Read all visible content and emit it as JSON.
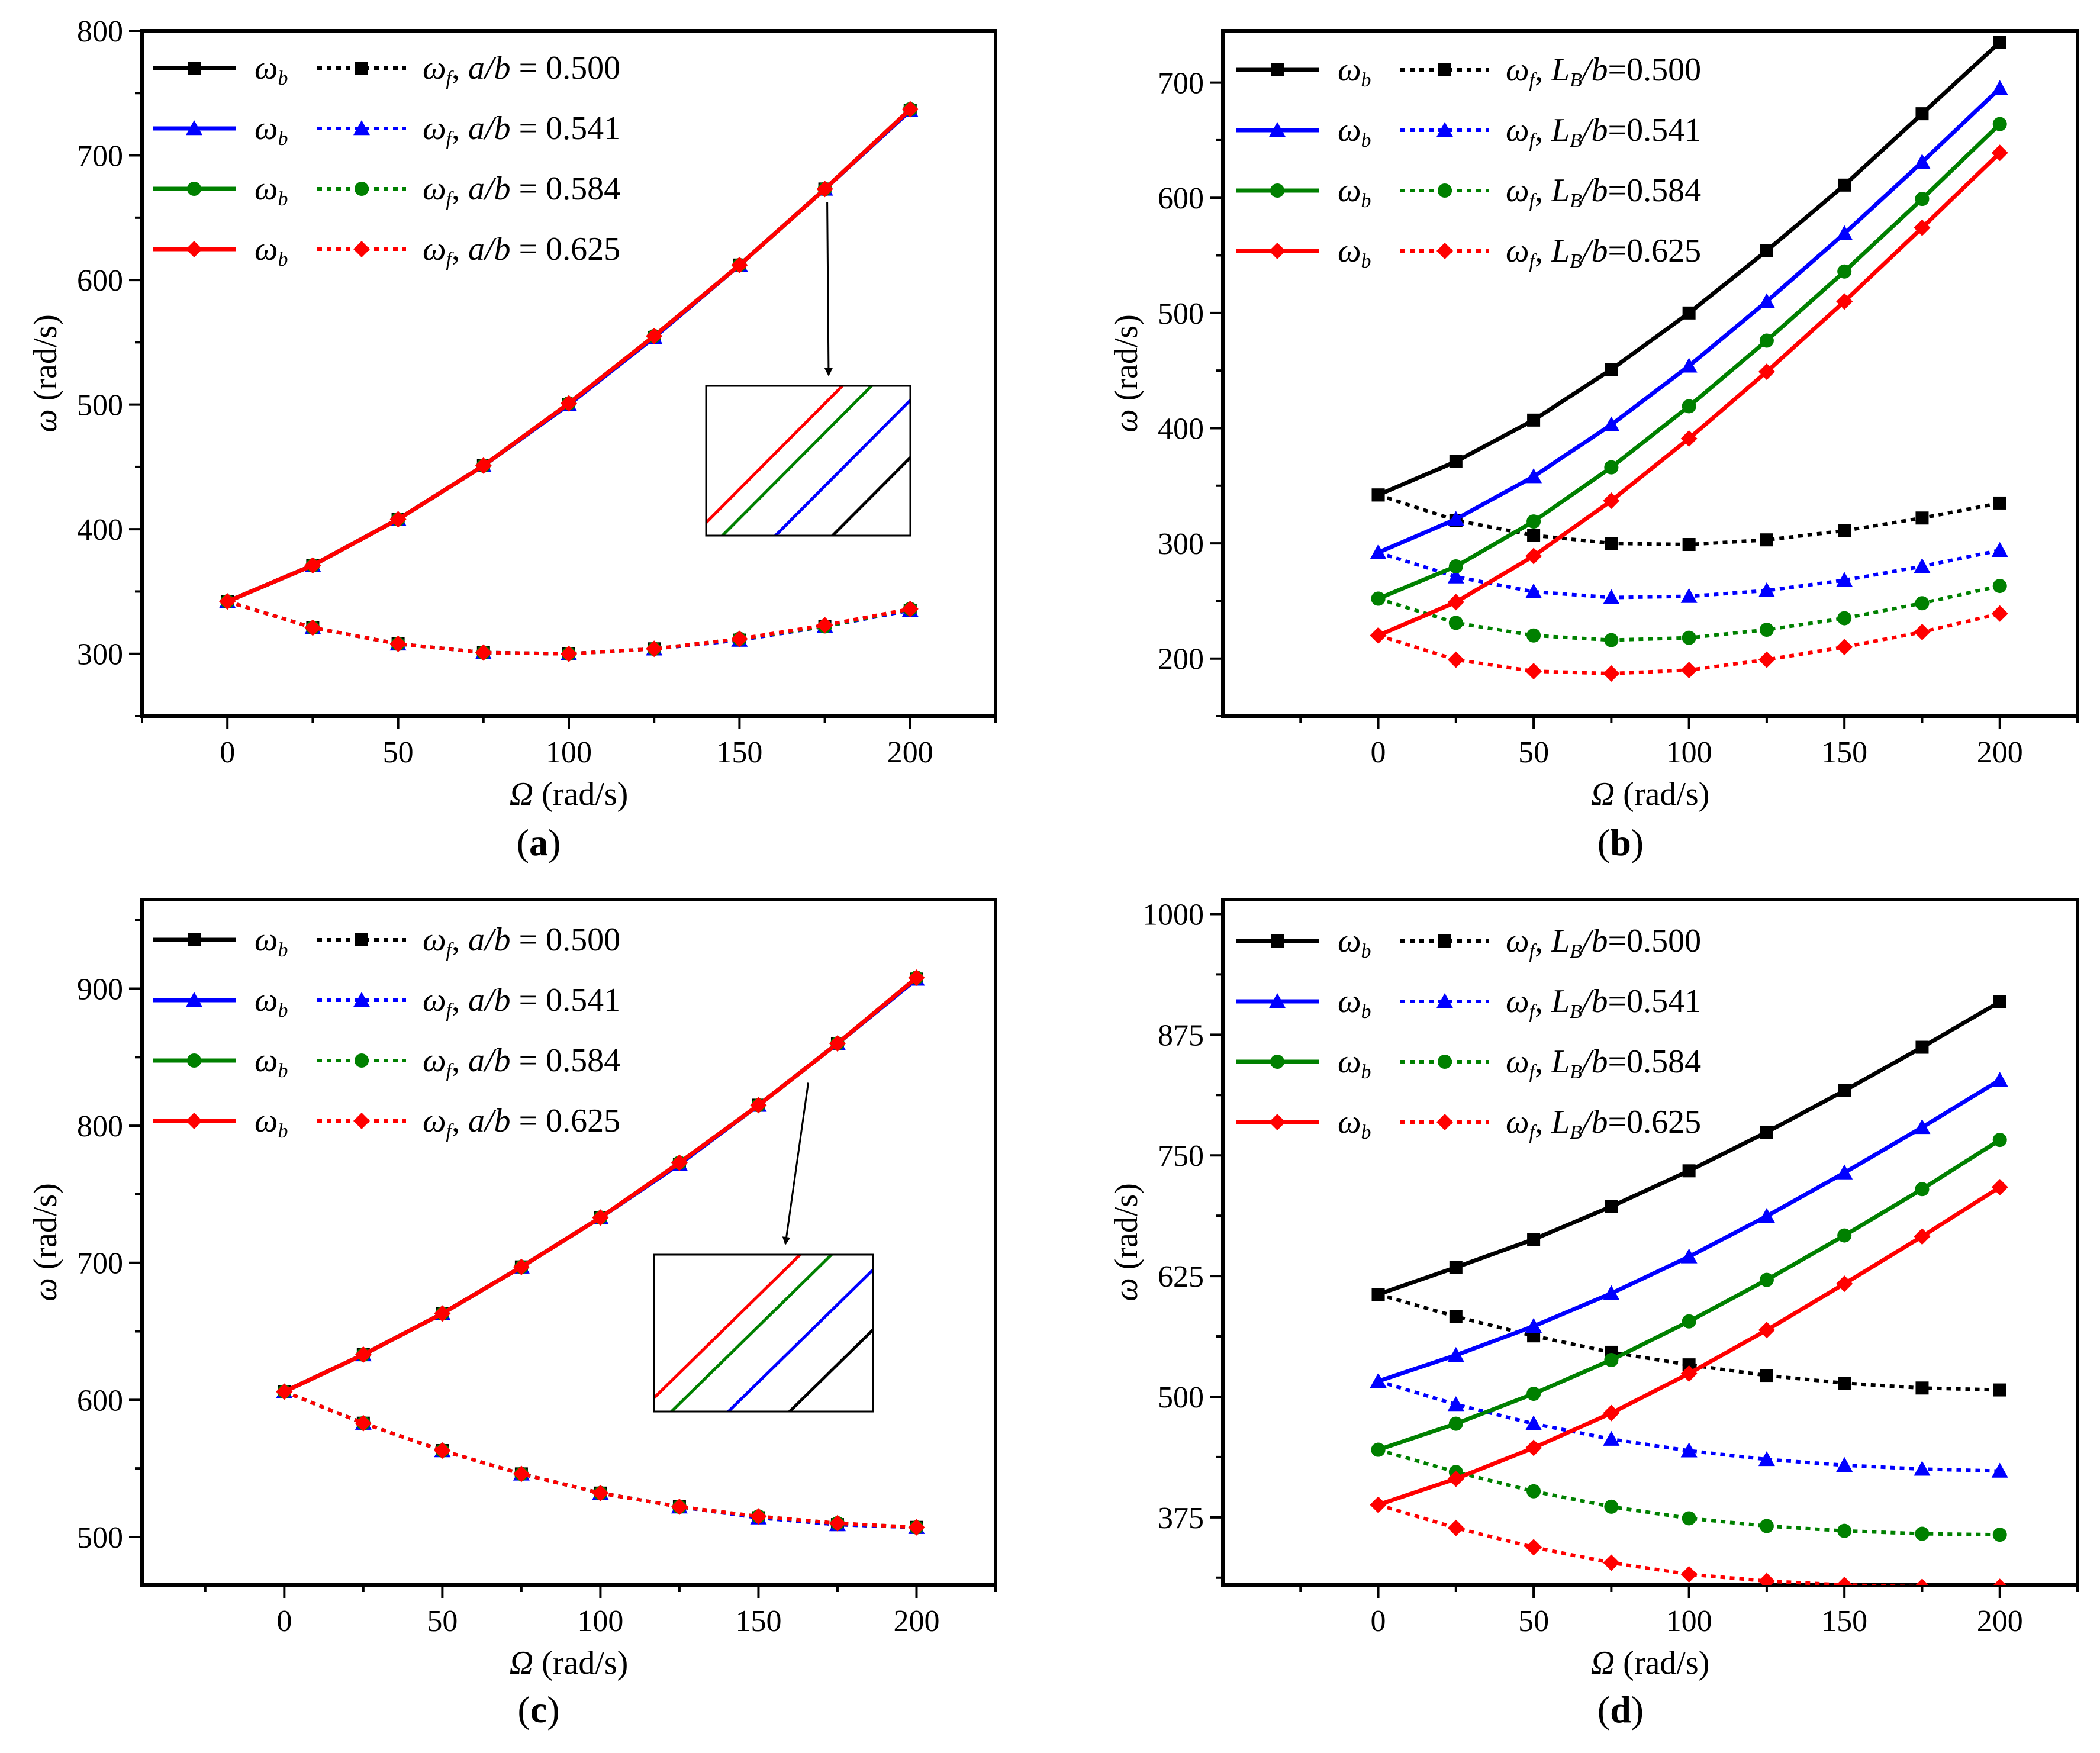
{
  "colors": {
    "black": "#000000",
    "blue": "#0000ff",
    "green": "#008000",
    "red": "#ff0000"
  },
  "chart_data": [
    {
      "type": "line",
      "panel_label": "(a)",
      "xlabel": "Ω",
      "xlabel_unit": " (rad/s)",
      "ylabel": "ω",
      "ylabel_unit": " (rad/s)",
      "xlim": [
        -25,
        225
      ],
      "ylim": [
        250,
        800
      ],
      "xticks": [
        0,
        50,
        100,
        150,
        200
      ],
      "yticks": [
        300,
        400,
        500,
        600,
        700,
        800
      ],
      "x": [
        0,
        25,
        50,
        75,
        100,
        125,
        150,
        175,
        200
      ],
      "param_label": "a/b",
      "legend": [
        {
          "b": "ω",
          "b_sub": "b",
          "f": "ω",
          "f_sub": "f",
          "param": "a/b",
          "value": " = 0.500",
          "color": "black",
          "marker": "square"
        },
        {
          "b": "ω",
          "b_sub": "b",
          "f": "ω",
          "f_sub": "f",
          "param": "a/b",
          "value": " = 0.541",
          "color": "blue",
          "marker": "triangle"
        },
        {
          "b": "ω",
          "b_sub": "b",
          "f": "ω",
          "f_sub": "f",
          "param": "a/b",
          "value": " = 0.584",
          "color": "green",
          "marker": "circle"
        },
        {
          "b": "ω",
          "b_sub": "b",
          "f": "ω",
          "f_sub": "f",
          "param": "a/b",
          "value": " = 0.625",
          "color": "red",
          "marker": "diamond"
        }
      ],
      "series": [
        {
          "name": "ω_b a/b=0.500",
          "color": "black",
          "marker": "square",
          "dash": false,
          "values": [
            342,
            371,
            408,
            451,
            500,
            554,
            612,
            673,
            736
          ]
        },
        {
          "name": "ω_f a/b=0.500",
          "color": "black",
          "marker": "square",
          "dash": true,
          "values": [
            342,
            321,
            308,
            301,
            300,
            304,
            311,
            322,
            335
          ]
        },
        {
          "name": "ω_b a/b=0.541",
          "color": "blue",
          "marker": "triangle",
          "dash": false,
          "values": [
            342,
            371,
            408,
            451,
            500,
            554,
            612,
            673,
            736
          ]
        },
        {
          "name": "ω_f a/b=0.541",
          "color": "blue",
          "marker": "triangle",
          "dash": true,
          "values": [
            342,
            321,
            308,
            301,
            300,
            304,
            311,
            322,
            335
          ]
        },
        {
          "name": "ω_b a/b=0.584",
          "color": "green",
          "marker": "circle",
          "dash": false,
          "values": [
            342,
            371,
            408,
            451,
            501,
            555,
            612,
            673,
            737
          ]
        },
        {
          "name": "ω_f a/b=0.584",
          "color": "green",
          "marker": "circle",
          "dash": true,
          "values": [
            342,
            321,
            308,
            301,
            300,
            304,
            312,
            322,
            336
          ]
        },
        {
          "name": "ω_b a/b=0.625",
          "color": "red",
          "marker": "diamond",
          "dash": false,
          "values": [
            342,
            371,
            408,
            451,
            501,
            555,
            612,
            673,
            737
          ]
        },
        {
          "name": "ω_f a/b=0.625",
          "color": "red",
          "marker": "diamond",
          "dash": true,
          "values": [
            342,
            321,
            308,
            301,
            300,
            304,
            312,
            323,
            336
          ]
        }
      ],
      "inset": {
        "present": true,
        "annotation": "zoom-in of ω_b curves near Ω = 175 rad/s",
        "point_x": 175,
        "point_y": 672
      }
    },
    {
      "type": "line",
      "panel_label": "(b)",
      "xlabel": "Ω",
      "xlabel_unit": " (rad/s)",
      "ylabel": "ω",
      "ylabel_unit": " (rad/s)",
      "xlim": [
        -50,
        225
      ],
      "ylim": [
        150,
        745
      ],
      "xticks": [
        0,
        50,
        100,
        150,
        200
      ],
      "yticks": [
        200,
        300,
        400,
        500,
        600,
        700
      ],
      "x": [
        0,
        25,
        50,
        75,
        100,
        125,
        150,
        175,
        200
      ],
      "param_label": "L_B/b",
      "legend": [
        {
          "b": "ω",
          "b_sub": "b",
          "f": "ω",
          "f_sub": "f",
          "param": "L",
          "param_sub": "B",
          "param_rest": "/b",
          "value": "=0.500",
          "color": "black",
          "marker": "square"
        },
        {
          "b": "ω",
          "b_sub": "b",
          "f": "ω",
          "f_sub": "f",
          "param": "L",
          "param_sub": "B",
          "param_rest": "/b",
          "value": "=0.541",
          "color": "blue",
          "marker": "triangle"
        },
        {
          "b": "ω",
          "b_sub": "b",
          "f": "ω",
          "f_sub": "f",
          "param": "L",
          "param_sub": "B",
          "param_rest": "/b",
          "value": "=0.584",
          "color": "green",
          "marker": "circle"
        },
        {
          "b": "ω",
          "b_sub": "b",
          "f": "ω",
          "f_sub": "f",
          "param": "L",
          "param_sub": "B",
          "param_rest": "/b",
          "value": "=0.625",
          "color": "red",
          "marker": "diamond"
        }
      ],
      "series": [
        {
          "name": "ω_b L_B/b=0.500",
          "color": "black",
          "marker": "square",
          "dash": false,
          "values": [
            342,
            371,
            407,
            451,
            500,
            554,
            611,
            673,
            735
          ]
        },
        {
          "name": "ω_f L_B/b=0.500",
          "color": "black",
          "marker": "square",
          "dash": true,
          "values": [
            342,
            320,
            307,
            300,
            299,
            303,
            311,
            322,
            335
          ]
        },
        {
          "name": "ω_b L_B/b=0.541",
          "color": "blue",
          "marker": "triangle",
          "dash": false,
          "values": [
            292,
            321,
            358,
            403,
            454,
            510,
            569,
            631,
            695
          ]
        },
        {
          "name": "ω_f L_B/b=0.541",
          "color": "blue",
          "marker": "triangle",
          "dash": true,
          "values": [
            292,
            271,
            258,
            253,
            254,
            259,
            268,
            280,
            294
          ]
        },
        {
          "name": "ω_b L_B/b=0.584",
          "color": "green",
          "marker": "circle",
          "dash": false,
          "values": [
            252,
            280,
            319,
            366,
            419,
            476,
            536,
            599,
            664
          ]
        },
        {
          "name": "ω_f L_B/b=0.584",
          "color": "green",
          "marker": "circle",
          "dash": true,
          "values": [
            252,
            231,
            220,
            216,
            218,
            225,
            235,
            248,
            263
          ]
        },
        {
          "name": "ω_b L_B/b=0.625",
          "color": "red",
          "marker": "diamond",
          "dash": false,
          "values": [
            220,
            249,
            289,
            337,
            391,
            449,
            510,
            574,
            639
          ]
        },
        {
          "name": "ω_f L_B/b=0.625",
          "color": "red",
          "marker": "diamond",
          "dash": true,
          "values": [
            220,
            199,
            189,
            187,
            190,
            199,
            210,
            223,
            239
          ]
        }
      ]
    },
    {
      "type": "line",
      "panel_label": "(c)",
      "xlabel": "Ω",
      "xlabel_unit": " (rad/s)",
      "ylabel": "ω",
      "ylabel_unit": " (rad/s)",
      "xlim": [
        -45,
        225
      ],
      "ylim": [
        465,
        965
      ],
      "xticks": [
        0,
        50,
        100,
        150,
        200
      ],
      "yticks": [
        500,
        600,
        700,
        800,
        900
      ],
      "x": [
        0,
        25,
        50,
        75,
        100,
        125,
        150,
        175,
        200
      ],
      "param_label": "a/b",
      "legend": [
        {
          "b": "ω",
          "b_sub": "b",
          "f": "ω",
          "f_sub": "f",
          "param": "a/b",
          "value": " = 0.500",
          "color": "black",
          "marker": "square"
        },
        {
          "b": "ω",
          "b_sub": "b",
          "f": "ω",
          "f_sub": "f",
          "param": "a/b",
          "value": " = 0.541",
          "color": "blue",
          "marker": "triangle"
        },
        {
          "b": "ω",
          "b_sub": "b",
          "f": "ω",
          "f_sub": "f",
          "param": "a/b",
          "value": " = 0.584",
          "color": "green",
          "marker": "circle"
        },
        {
          "b": "ω",
          "b_sub": "b",
          "f": "ω",
          "f_sub": "f",
          "param": "a/b",
          "value": " = 0.625",
          "color": "red",
          "marker": "diamond"
        }
      ],
      "series": [
        {
          "name": "ω_b a/b=0.500",
          "color": "black",
          "marker": "square",
          "dash": false,
          "values": [
            606,
            633,
            663,
            697,
            733,
            772,
            815,
            860,
            907
          ]
        },
        {
          "name": "ω_f a/b=0.500",
          "color": "black",
          "marker": "square",
          "dash": true,
          "values": [
            606,
            583,
            563,
            546,
            532,
            522,
            514,
            509,
            507
          ]
        },
        {
          "name": "ω_b a/b=0.541",
          "color": "blue",
          "marker": "triangle",
          "dash": false,
          "values": [
            606,
            633,
            663,
            697,
            733,
            772,
            815,
            860,
            907
          ]
        },
        {
          "name": "ω_f a/b=0.541",
          "color": "blue",
          "marker": "triangle",
          "dash": true,
          "values": [
            606,
            583,
            563,
            546,
            532,
            522,
            514,
            509,
            507
          ]
        },
        {
          "name": "ω_b a/b=0.584",
          "color": "green",
          "marker": "circle",
          "dash": false,
          "values": [
            606,
            633,
            663,
            697,
            733,
            773,
            815,
            860,
            908
          ]
        },
        {
          "name": "ω_f a/b=0.584",
          "color": "green",
          "marker": "circle",
          "dash": true,
          "values": [
            606,
            583,
            563,
            546,
            532,
            522,
            515,
            510,
            507
          ]
        },
        {
          "name": "ω_b a/b=0.625",
          "color": "red",
          "marker": "diamond",
          "dash": false,
          "values": [
            606,
            633,
            663,
            697,
            733,
            773,
            815,
            860,
            908
          ]
        },
        {
          "name": "ω_f a/b=0.625",
          "color": "red",
          "marker": "diamond",
          "dash": true,
          "values": [
            606,
            583,
            563,
            546,
            532,
            522,
            515,
            510,
            507
          ]
        }
      ],
      "inset": {
        "present": true,
        "annotation": "zoom-in of ω_b curves near Ω = 165 rad/s",
        "point_x": 165,
        "point_y": 840
      }
    },
    {
      "type": "line",
      "panel_label": "(d)",
      "xlabel": "Ω",
      "xlabel_unit": " (rad/s)",
      "ylabel": "ω",
      "ylabel_unit": " (rad/s)",
      "xlim": [
        -50,
        225
      ],
      "ylim": [
        305,
        1015
      ],
      "xticks": [
        0,
        50,
        100,
        150,
        200
      ],
      "yticks": [
        375,
        500,
        625,
        750,
        875,
        1000
      ],
      "x": [
        0,
        25,
        50,
        75,
        100,
        125,
        150,
        175,
        200
      ],
      "param_label": "L_B/b",
      "legend": [
        {
          "b": "ω",
          "b_sub": "b",
          "f": "ω",
          "f_sub": "f",
          "param": "L",
          "param_sub": "B",
          "param_rest": "/b",
          "value": "=0.500",
          "color": "black",
          "marker": "square"
        },
        {
          "b": "ω",
          "b_sub": "b",
          "f": "ω",
          "f_sub": "f",
          "param": "L",
          "param_sub": "B",
          "param_rest": "/b",
          "value": "=0.541",
          "color": "blue",
          "marker": "triangle"
        },
        {
          "b": "ω",
          "b_sub": "b",
          "f": "ω",
          "f_sub": "f",
          "param": "L",
          "param_sub": "B",
          "param_rest": "/b",
          "value": "=0.584",
          "color": "green",
          "marker": "circle"
        },
        {
          "b": "ω",
          "b_sub": "b",
          "f": "ω",
          "f_sub": "f",
          "param": "L",
          "param_sub": "B",
          "param_rest": "/b",
          "value": "=0.625",
          "color": "red",
          "marker": "diamond"
        }
      ],
      "series": [
        {
          "name": "ω_b L_B/b=0.500",
          "color": "black",
          "marker": "square",
          "dash": false,
          "values": [
            606,
            634,
            663,
            697,
            734,
            774,
            817,
            862,
            909
          ]
        },
        {
          "name": "ω_f L_B/b=0.500",
          "color": "black",
          "marker": "square",
          "dash": true,
          "values": [
            606,
            583,
            563,
            546,
            533,
            522,
            514,
            509,
            507
          ]
        },
        {
          "name": "ω_b L_B/b=0.541",
          "color": "blue",
          "marker": "triangle",
          "dash": false,
          "values": [
            516,
            543,
            573,
            607,
            645,
            687,
            732,
            779,
            828
          ]
        },
        {
          "name": "ω_f L_B/b=0.541",
          "color": "blue",
          "marker": "triangle",
          "dash": true,
          "values": [
            516,
            492,
            472,
            456,
            444,
            435,
            429,
            425,
            423
          ]
        },
        {
          "name": "ω_b L_B/b=0.584",
          "color": "green",
          "marker": "circle",
          "dash": false,
          "values": [
            445,
            472,
            503,
            538,
            578,
            621,
            667,
            715,
            766
          ]
        },
        {
          "name": "ω_f L_B/b=0.584",
          "color": "green",
          "marker": "circle",
          "dash": true,
          "values": [
            445,
            422,
            402,
            386,
            374,
            366,
            361,
            358,
            357
          ]
        },
        {
          "name": "ω_b L_B/b=0.625",
          "color": "red",
          "marker": "diamond",
          "dash": false,
          "values": [
            388,
            415,
            447,
            483,
            524,
            569,
            617,
            666,
            717
          ]
        },
        {
          "name": "ω_f L_B/b=0.625",
          "color": "red",
          "marker": "diamond",
          "dash": true,
          "values": [
            388,
            364,
            344,
            328,
            316,
            309,
            305,
            303,
            303
          ]
        }
      ]
    }
  ]
}
